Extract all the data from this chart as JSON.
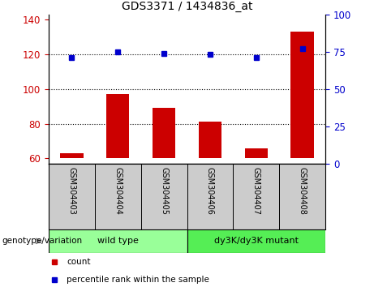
{
  "title": "GDS3371 / 1434836_at",
  "samples": [
    "GSM304403",
    "GSM304404",
    "GSM304405",
    "GSM304406",
    "GSM304407",
    "GSM304408"
  ],
  "counts": [
    63,
    97,
    89,
    81,
    66,
    133
  ],
  "percentile_ranks": [
    71,
    75,
    74,
    73,
    71,
    77
  ],
  "ylim_left": [
    57,
    143
  ],
  "ylim_right": [
    0,
    100
  ],
  "yticks_left": [
    60,
    80,
    100,
    120,
    140
  ],
  "yticks_right": [
    0,
    25,
    50,
    75,
    100
  ],
  "bar_color": "#cc0000",
  "dot_color": "#0000cc",
  "bar_bottom": 60,
  "groups": [
    {
      "label": "wild type",
      "indices": [
        0,
        1,
        2
      ],
      "color": "#99ff99"
    },
    {
      "label": "dy3K/dy3K mutant",
      "indices": [
        3,
        4,
        5
      ],
      "color": "#55ee55"
    }
  ],
  "group_label_prefix": "genotype/variation",
  "legend_items": [
    {
      "label": "count",
      "color": "#cc0000"
    },
    {
      "label": "percentile rank within the sample",
      "color": "#0000cc"
    }
  ],
  "grid_yticks": [
    80,
    100,
    120
  ],
  "tick_color_left": "#cc0000",
  "tick_color_right": "#0000cc",
  "figsize": [
    4.61,
    3.54
  ],
  "dpi": 100
}
